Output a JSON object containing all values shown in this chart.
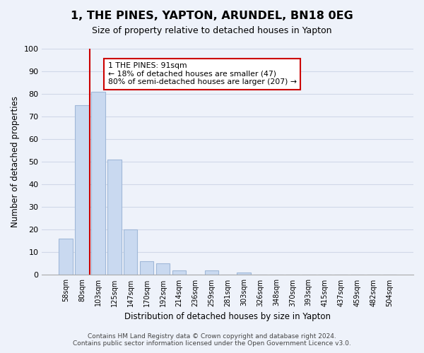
{
  "title": "1, THE PINES, YAPTON, ARUNDEL, BN18 0EG",
  "subtitle": "Size of property relative to detached houses in Yapton",
  "xlabel": "Distribution of detached houses by size in Yapton",
  "ylabel": "Number of detached properties",
  "bins": [
    "58sqm",
    "80sqm",
    "103sqm",
    "125sqm",
    "147sqm",
    "170sqm",
    "192sqm",
    "214sqm",
    "236sqm",
    "259sqm",
    "281sqm",
    "303sqm",
    "326sqm",
    "348sqm",
    "370sqm",
    "393sqm",
    "415sqm",
    "437sqm",
    "459sqm",
    "482sqm",
    "504sqm"
  ],
  "values": [
    16,
    75,
    81,
    51,
    20,
    6,
    5,
    2,
    0,
    2,
    0,
    1,
    0,
    0,
    0,
    0,
    0,
    0,
    0,
    0,
    0
  ],
  "bar_color": "#c9d9f0",
  "bar_edge_color": "#a0b8d8",
  "marker_line_color": "#cc0000",
  "annotation_text": "1 THE PINES: 91sqm\n← 18% of detached houses are smaller (47)\n80% of semi-detached houses are larger (207) →",
  "annotation_box_color": "#ffffff",
  "annotation_box_edge_color": "#cc0000",
  "ylim": [
    0,
    100
  ],
  "yticks": [
    0,
    10,
    20,
    30,
    40,
    50,
    60,
    70,
    80,
    90,
    100
  ],
  "grid_color": "#d0d8e8",
  "footer_line1": "Contains HM Land Registry data © Crown copyright and database right 2024.",
  "footer_line2": "Contains public sector information licensed under the Open Government Licence v3.0.",
  "bg_color": "#eef2fa"
}
